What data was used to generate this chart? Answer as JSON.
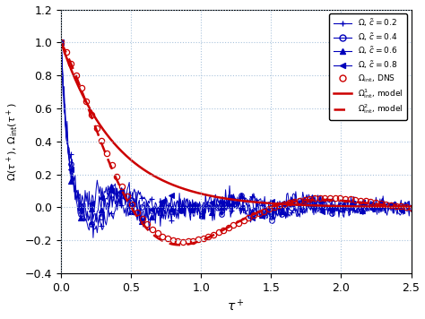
{
  "xlabel": "$\\tau^+$",
  "ylabel": "$\\Omega(\\tau^+),\\, \\Omega_{\\mathrm{int}}(\\tau^+)$",
  "xlim": [
    0,
    2.5
  ],
  "ylim": [
    -0.4,
    1.2
  ],
  "xticks": [
    0,
    0.5,
    1.0,
    1.5,
    2.0,
    2.5
  ],
  "yticks": [
    -0.4,
    -0.2,
    0.0,
    0.2,
    0.4,
    0.6,
    0.8,
    1.0,
    1.2
  ],
  "blue_color": "#0000bb",
  "red_color": "#cc0000",
  "grid_color": "#aac4dd",
  "dns_n_points": 70,
  "blue_n_points": 350,
  "blue_markevery": 10
}
